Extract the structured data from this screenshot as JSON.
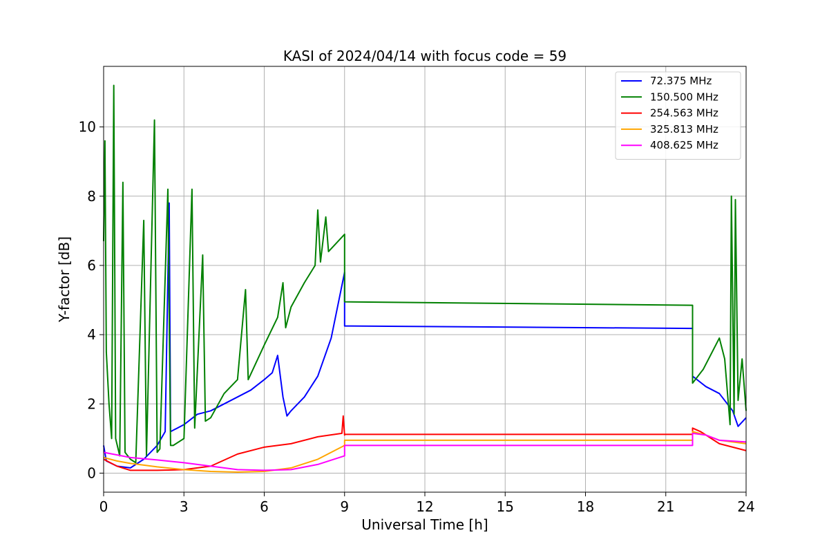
{
  "chart_data": {
    "type": "line",
    "title": "KASI of 2024/04/14 with focus code = 59",
    "xlabel": "Universal Time [h]",
    "ylabel": "Y-factor [dB]",
    "xlim": [
      0,
      24
    ],
    "ylim": [
      -0.55,
      11.75
    ],
    "xticks": [
      0,
      3,
      6,
      9,
      12,
      15,
      18,
      21,
      24
    ],
    "yticks": [
      0,
      2,
      4,
      6,
      8,
      10
    ],
    "grid": true,
    "legend_position": "top-right",
    "series": [
      {
        "name": " 72.375 MHz",
        "color": "#0000ff",
        "points": [
          [
            0,
            0.8
          ],
          [
            0.1,
            0.35
          ],
          [
            0.5,
            0.2
          ],
          [
            1,
            0.15
          ],
          [
            1.5,
            0.4
          ],
          [
            2,
            0.8
          ],
          [
            2.3,
            1.2
          ],
          [
            2.45,
            7.8
          ],
          [
            2.5,
            1.2
          ],
          [
            3,
            1.4
          ],
          [
            3.5,
            1.7
          ],
          [
            4,
            1.8
          ],
          [
            4.5,
            2.0
          ],
          [
            5,
            2.2
          ],
          [
            5.5,
            2.4
          ],
          [
            6,
            2.7
          ],
          [
            6.3,
            2.9
          ],
          [
            6.5,
            3.4
          ],
          [
            6.7,
            2.2
          ],
          [
            6.85,
            1.65
          ],
          [
            7,
            1.8
          ],
          [
            7.5,
            2.2
          ],
          [
            8,
            2.8
          ],
          [
            8.5,
            3.9
          ],
          [
            9,
            5.8
          ],
          [
            9.0,
            4.25
          ],
          [
            22,
            4.18
          ],
          [
            22.0,
            2.8
          ],
          [
            22.5,
            2.5
          ],
          [
            23,
            2.3
          ],
          [
            23.5,
            1.8
          ],
          [
            23.7,
            1.35
          ],
          [
            24,
            1.6
          ]
        ]
      },
      {
        "name": " 150.500 MHz",
        "color": "#008000",
        "points": [
          [
            0,
            6.7
          ],
          [
            0.05,
            9.6
          ],
          [
            0.1,
            3.5
          ],
          [
            0.2,
            2.0
          ],
          [
            0.3,
            1.0
          ],
          [
            0.38,
            11.2
          ],
          [
            0.45,
            1.0
          ],
          [
            0.6,
            0.5
          ],
          [
            0.72,
            8.4
          ],
          [
            0.8,
            0.6
          ],
          [
            1.0,
            0.4
          ],
          [
            1.2,
            0.3
          ],
          [
            1.5,
            7.3
          ],
          [
            1.6,
            0.5
          ],
          [
            1.9,
            10.2
          ],
          [
            2.0,
            0.6
          ],
          [
            2.1,
            0.7
          ],
          [
            2.4,
            8.2
          ],
          [
            2.5,
            0.8
          ],
          [
            2.6,
            0.8
          ],
          [
            3,
            1.0
          ],
          [
            3.3,
            8.2
          ],
          [
            3.4,
            1.3
          ],
          [
            3.7,
            6.3
          ],
          [
            3.8,
            1.5
          ],
          [
            4,
            1.6
          ],
          [
            4.5,
            2.3
          ],
          [
            5,
            2.7
          ],
          [
            5.3,
            5.3
          ],
          [
            5.4,
            2.7
          ],
          [
            6,
            3.7
          ],
          [
            6.5,
            4.5
          ],
          [
            6.7,
            5.5
          ],
          [
            6.8,
            4.2
          ],
          [
            7,
            4.8
          ],
          [
            7.5,
            5.5
          ],
          [
            7.9,
            6.0
          ],
          [
            8.0,
            7.6
          ],
          [
            8.1,
            6.1
          ],
          [
            8.3,
            7.4
          ],
          [
            8.4,
            6.4
          ],
          [
            9,
            6.9
          ],
          [
            9.0,
            4.95
          ],
          [
            22,
            4.85
          ],
          [
            22.0,
            2.6
          ],
          [
            22.4,
            3.0
          ],
          [
            23,
            3.9
          ],
          [
            23.2,
            3.3
          ],
          [
            23.4,
            1.4
          ],
          [
            23.45,
            8.0
          ],
          [
            23.55,
            1.7
          ],
          [
            23.6,
            7.9
          ],
          [
            23.7,
            2.1
          ],
          [
            23.85,
            3.3
          ],
          [
            24,
            1.8
          ]
        ]
      },
      {
        "name": " 254.563 MHz",
        "color": "#ff0000",
        "points": [
          [
            0,
            0.4
          ],
          [
            0.5,
            0.2
          ],
          [
            1,
            0.08
          ],
          [
            2,
            0.08
          ],
          [
            3,
            0.1
          ],
          [
            4,
            0.2
          ],
          [
            5,
            0.55
          ],
          [
            6,
            0.75
          ],
          [
            7,
            0.85
          ],
          [
            8,
            1.05
          ],
          [
            8.9,
            1.15
          ],
          [
            8.95,
            1.65
          ],
          [
            9,
            1.1
          ],
          [
            9.0,
            1.12
          ],
          [
            22,
            1.12
          ],
          [
            22.0,
            1.3
          ],
          [
            22.3,
            1.2
          ],
          [
            23,
            0.85
          ],
          [
            24,
            0.65
          ]
        ]
      },
      {
        "name": " 325.813 MHz",
        "color": "#ffa500",
        "points": [
          [
            0,
            0.45
          ],
          [
            0.5,
            0.35
          ],
          [
            1,
            0.28
          ],
          [
            2,
            0.18
          ],
          [
            3,
            0.1
          ],
          [
            4,
            0.05
          ],
          [
            5,
            0.03
          ],
          [
            6,
            0.05
          ],
          [
            7,
            0.15
          ],
          [
            8,
            0.4
          ],
          [
            9,
            0.8
          ],
          [
            9.0,
            0.95
          ],
          [
            22,
            0.95
          ],
          [
            22.0,
            1.2
          ],
          [
            22.5,
            1.1
          ],
          [
            23,
            0.95
          ],
          [
            24,
            0.85
          ]
        ]
      },
      {
        "name": " 408.625 MHz",
        "color": "#ff00ff",
        "points": [
          [
            0,
            0.6
          ],
          [
            1,
            0.45
          ],
          [
            2,
            0.38
          ],
          [
            3,
            0.3
          ],
          [
            4,
            0.2
          ],
          [
            5,
            0.1
          ],
          [
            6,
            0.08
          ],
          [
            7,
            0.1
          ],
          [
            8,
            0.25
          ],
          [
            9,
            0.5
          ],
          [
            9.0,
            0.8
          ],
          [
            22,
            0.8
          ],
          [
            22.0,
            1.15
          ],
          [
            22.5,
            1.1
          ],
          [
            23,
            0.95
          ],
          [
            24,
            0.9
          ]
        ]
      }
    ]
  }
}
